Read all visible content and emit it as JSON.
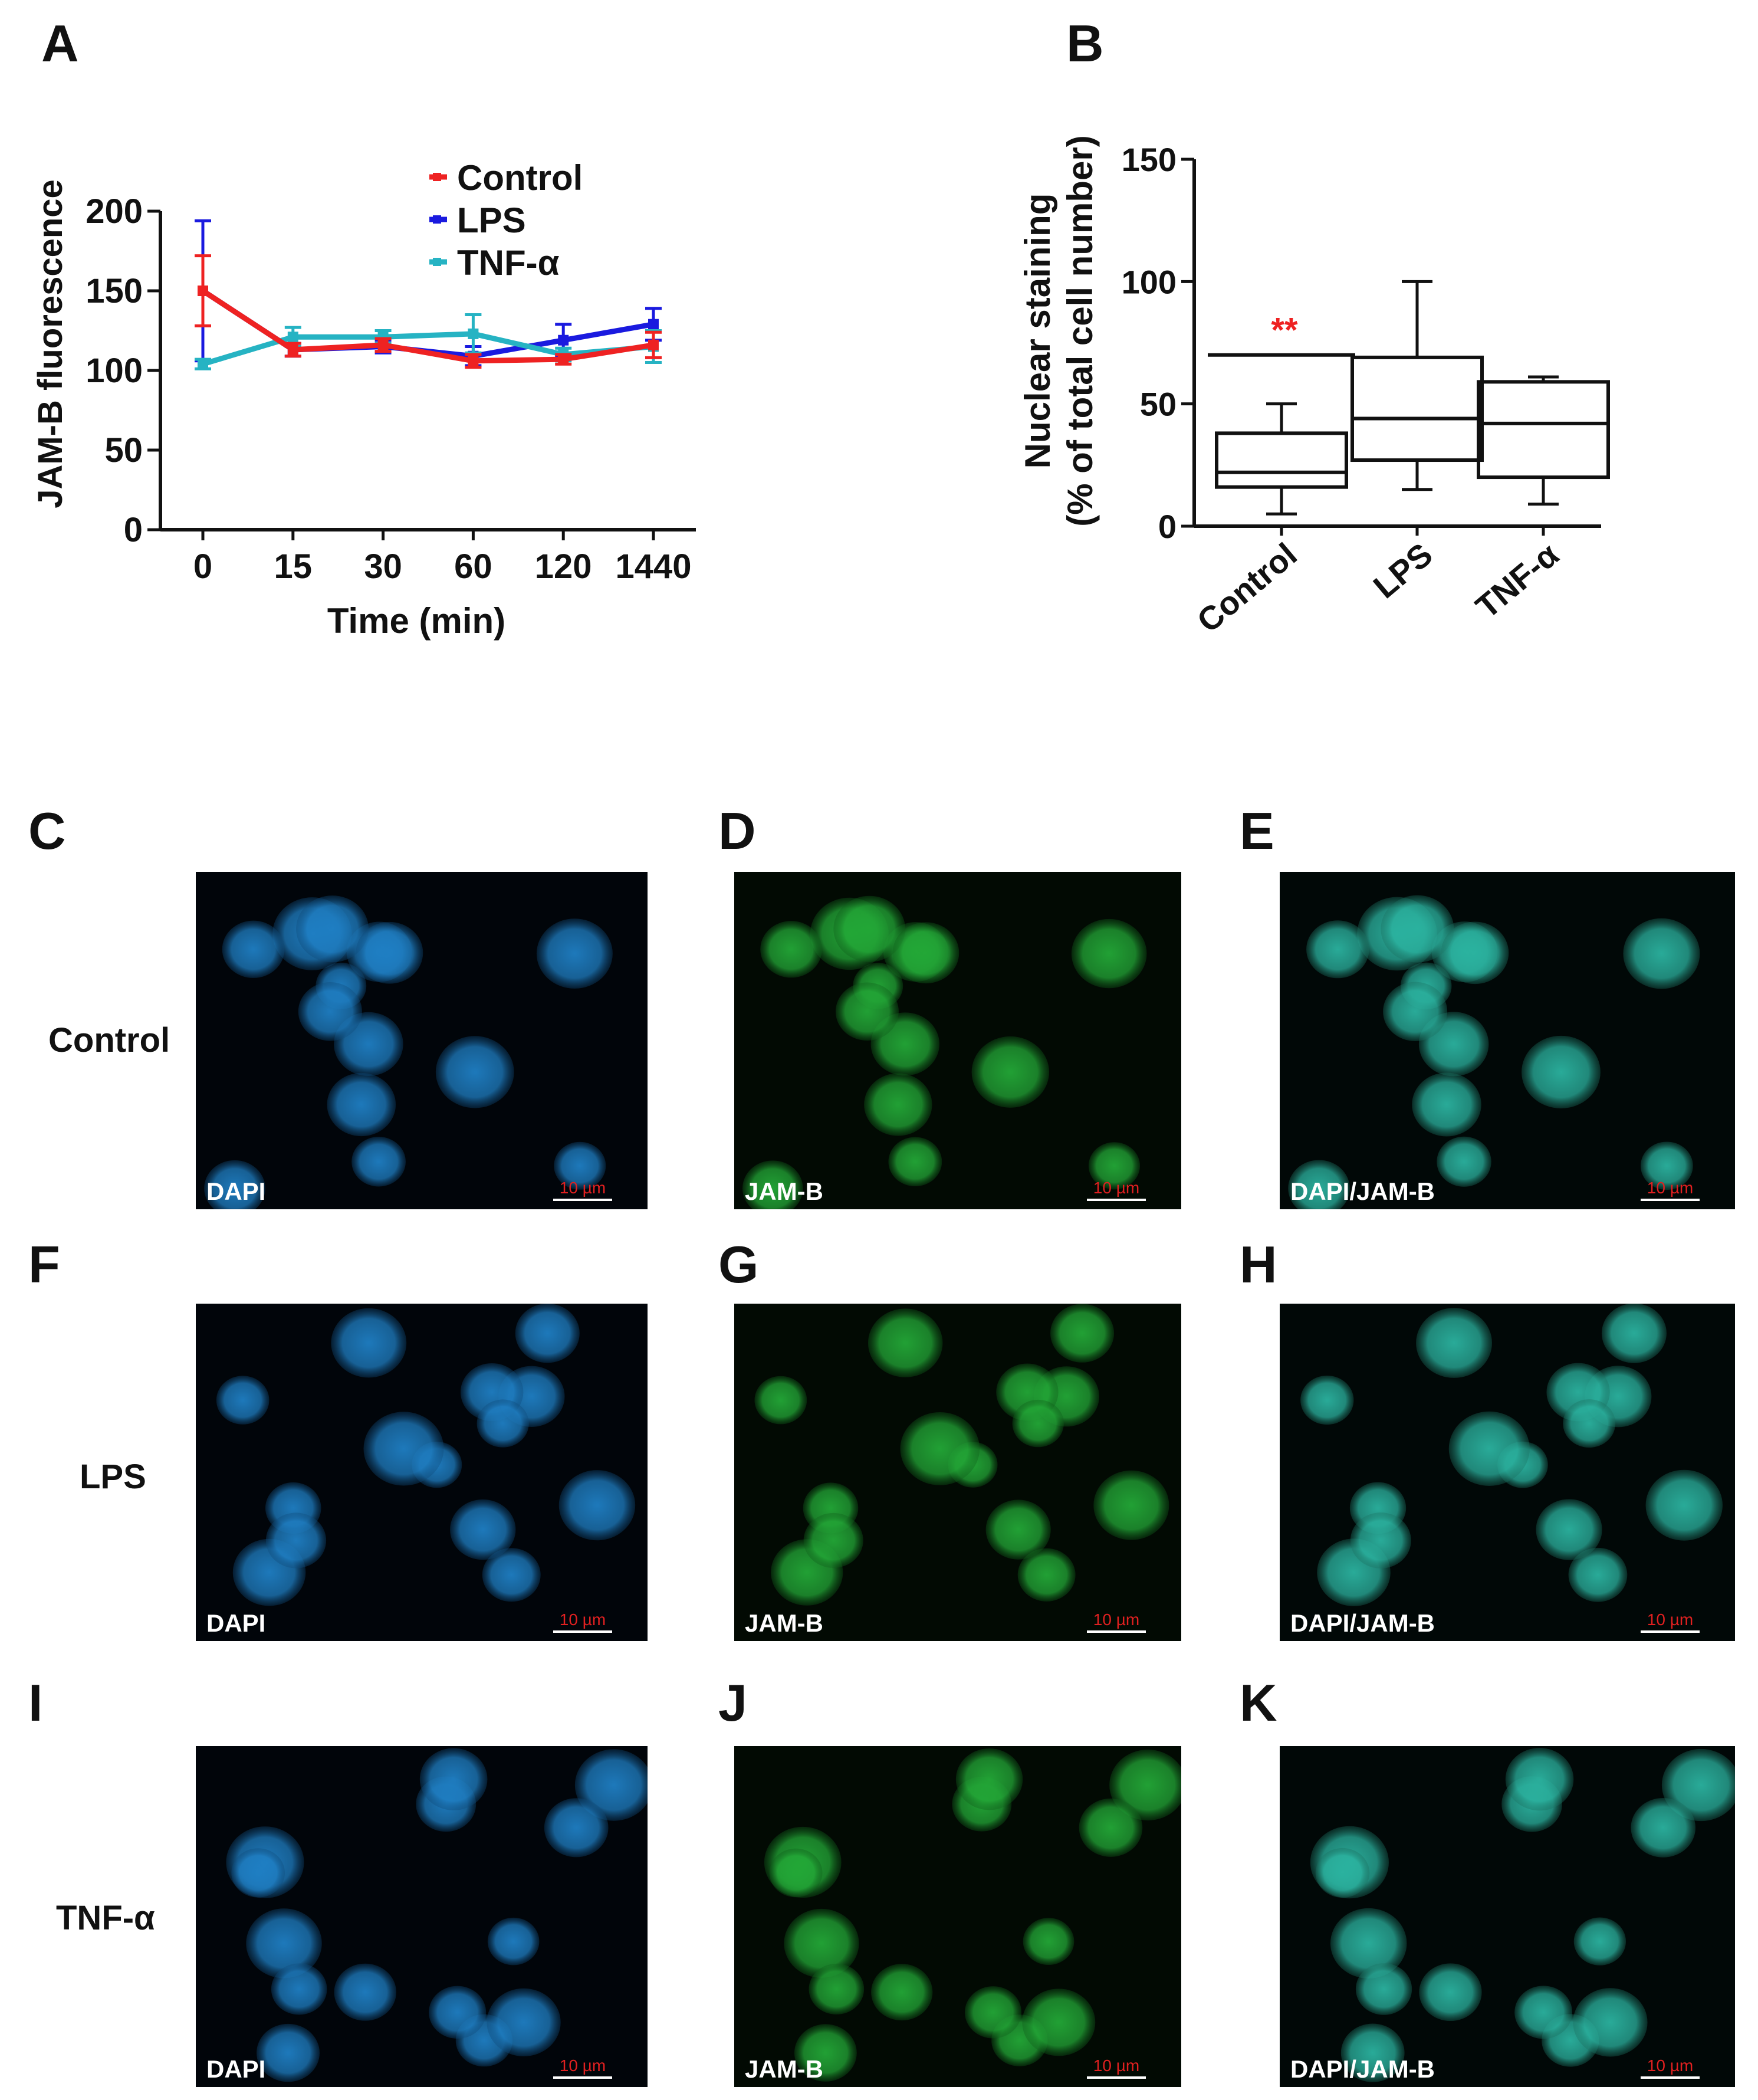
{
  "letters": {
    "A": "A",
    "B": "B",
    "C": "C",
    "D": "D",
    "E": "E",
    "F": "F",
    "G": "G",
    "H": "H",
    "I": "I",
    "J": "J",
    "K": "K"
  },
  "rows": [
    {
      "label": "Control",
      "panels": [
        {
          "letter": "C",
          "channel": "DAPI",
          "scale": "10 µm",
          "tint": "blue"
        },
        {
          "letter": "D",
          "channel": "JAM-B",
          "scale": "10 µm",
          "tint": "green"
        },
        {
          "letter": "E",
          "channel": "DAPI/JAM-B",
          "scale": "10 µm",
          "tint": "cyan"
        }
      ]
    },
    {
      "label": "LPS",
      "panels": [
        {
          "letter": "F",
          "channel": "DAPI",
          "scale": "10 µm",
          "tint": "blue"
        },
        {
          "letter": "G",
          "channel": "JAM-B",
          "scale": "10 µm",
          "tint": "green"
        },
        {
          "letter": "H",
          "channel": "DAPI/JAM-B",
          "scale": "10 µm",
          "tint": "cyan"
        }
      ]
    },
    {
      "label": "TNF-α",
      "panels": [
        {
          "letter": "I",
          "channel": "DAPI",
          "scale": "10 µm",
          "tint": "blue"
        },
        {
          "letter": "J",
          "channel": "JAM-B",
          "scale": "10 µm",
          "tint": "green"
        },
        {
          "letter": "K",
          "channel": "DAPI/JAM-B",
          "scale": "10 µm",
          "tint": "cyan"
        }
      ]
    }
  ],
  "chart_data": [
    {
      "type": "line",
      "panel": "A",
      "xlabel": "Time (min)",
      "ylabel": "JAM-B fluorescence",
      "categories": [
        "0",
        "15",
        "30",
        "60",
        "120",
        "1440"
      ],
      "ylim": [
        0,
        200
      ],
      "yticks": [
        0,
        50,
        100,
        150,
        200
      ],
      "legend_position": "top-right",
      "series": [
        {
          "name": "Control",
          "color": "#ee2222",
          "values": [
            150,
            113,
            116,
            106,
            107,
            116
          ],
          "err": [
            22,
            4,
            4,
            4,
            3,
            8
          ]
        },
        {
          "name": "LPS",
          "color": "#1a1adf",
          "values": [
            150,
            113,
            115,
            109,
            119,
            129
          ],
          "err": [
            44,
            4,
            4,
            6,
            10,
            10
          ]
        },
        {
          "name": "TNF-α",
          "color": "#26b3c3",
          "values": [
            104,
            121,
            121,
            123,
            110,
            115
          ],
          "err": [
            3,
            6,
            4,
            12,
            4,
            10
          ]
        }
      ]
    },
    {
      "type": "box",
      "panel": "B",
      "ylabel_lines": [
        "Nuclear staining",
        "(% of total cell number)"
      ],
      "categories": [
        "Control",
        "LPS",
        "TNF-α"
      ],
      "ylim": [
        0,
        150
      ],
      "yticks": [
        0,
        50,
        100,
        150
      ],
      "boxes": [
        {
          "min": 5,
          "q1": 16,
          "median": 22,
          "q3": 38,
          "max": 50
        },
        {
          "min": 15,
          "q1": 27,
          "median": 44,
          "q3": 69,
          "max": 100
        },
        {
          "min": 9,
          "q1": 20,
          "median": 42,
          "q3": 59,
          "max": 61
        }
      ],
      "annotation": {
        "text": "**",
        "color": "#ee2222",
        "line_y": 70,
        "category": "Control"
      }
    }
  ]
}
